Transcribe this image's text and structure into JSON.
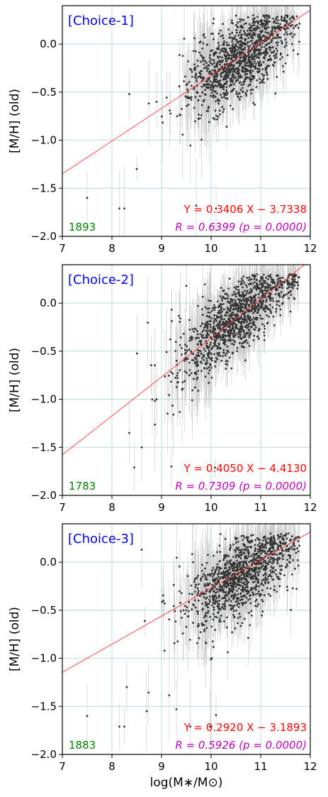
{
  "chart_data": [
    {
      "type": "scatter",
      "label": "[Choice-1]",
      "count": "1893",
      "fit_text": "Y = 0.3406 X − 3.7338",
      "r_text": "R = 0.6399 (p = 0.0000)",
      "fit": {
        "slope": 0.3406,
        "intercept": -3.7338
      },
      "R": 0.6399,
      "p": 0.0,
      "ylabel": "[M/H] (old)",
      "xlabel": "",
      "xlim": [
        7,
        12
      ],
      "ylim": [
        -2.0,
        0.4
      ],
      "xticks": [
        "7",
        "8",
        "9",
        "10",
        "11",
        "12"
      ],
      "yticks": [
        "−2.0",
        "−1.5",
        "−1.0",
        "−0.5",
        "0.0"
      ],
      "grid": true,
      "cloud": {
        "x_mean": 10.6,
        "x_sd": 0.55,
        "x_min": 8.3,
        "x_max": 11.8,
        "y_at_11": 0.0,
        "y_slope": 0.3406,
        "y_sd": 0.2,
        "n_plotted": 1200,
        "floor_y": -1.71
      },
      "points": [
        [
          7.5,
          -1.6
        ],
        [
          8.35,
          -0.52
        ],
        [
          8.25,
          -1.71
        ],
        [
          8.15,
          -1.71
        ],
        [
          8.9,
          -0.6
        ],
        [
          9.7,
          -1.68
        ],
        [
          10.1,
          -1.71
        ],
        [
          8.5,
          -1.3
        ]
      ]
    },
    {
      "type": "scatter",
      "label": "[Choice-2]",
      "count": "1783",
      "fit_text": "Y = 0.4050 X − 4.4130",
      "r_text": "R = 0.7309 (p = 0.0000)",
      "fit": {
        "slope": 0.405,
        "intercept": -4.413
      },
      "R": 0.7309,
      "p": 0.0,
      "ylabel": "[M/H] (old)",
      "xlabel": "",
      "xlim": [
        7,
        12
      ],
      "ylim": [
        -2.0,
        0.4
      ],
      "xticks": [
        "7",
        "8",
        "9",
        "10",
        "11",
        "12"
      ],
      "yticks": [
        "−2.0",
        "−1.5",
        "−1.0",
        "−0.5",
        "0.0"
      ],
      "grid": true,
      "cloud": {
        "x_mean": 10.5,
        "x_sd": 0.6,
        "x_min": 8.3,
        "x_max": 11.8,
        "y_at_11": 0.04,
        "y_slope": 0.405,
        "y_sd": 0.18,
        "n_plotted": 1200,
        "floor_y": -1.71
      },
      "points": [
        [
          8.35,
          -1.35
        ],
        [
          8.45,
          -1.71
        ],
        [
          9.5,
          0.18
        ],
        [
          8.6,
          -1.5
        ],
        [
          9.2,
          -1.7
        ],
        [
          8.9,
          -1.0
        ]
      ]
    },
    {
      "type": "scatter",
      "label": "[Choice-3]",
      "count": "1883",
      "fit_text": "Y = 0.2920 X − 3.1893",
      "r_text": "R = 0.5926 (p = 0.0000)",
      "fit": {
        "slope": 0.292,
        "intercept": -3.1893
      },
      "R": 0.5926,
      "p": 0.0,
      "ylabel": "[M/H] (old)",
      "xlabel": "log(M∗/M⊙)",
      "xlim": [
        7,
        12
      ],
      "ylim": [
        -2.0,
        0.4
      ],
      "xticks": [
        "7",
        "8",
        "9",
        "10",
        "11",
        "12"
      ],
      "yticks": [
        "−2.0",
        "−1.5",
        "−1.0",
        "−0.5",
        "0.0"
      ],
      "grid": true,
      "cloud": {
        "x_mean": 10.6,
        "x_sd": 0.55,
        "x_min": 8.3,
        "x_max": 11.8,
        "y_at_11": -0.02,
        "y_slope": 0.292,
        "y_sd": 0.2,
        "n_plotted": 1200,
        "floor_y": -1.71
      },
      "points": [
        [
          7.5,
          -1.6
        ],
        [
          8.6,
          0.13
        ],
        [
          8.3,
          -1.3
        ],
        [
          8.25,
          -1.71
        ],
        [
          8.15,
          -1.71
        ],
        [
          9.3,
          -1.53
        ],
        [
          10.1,
          -1.59
        ],
        [
          8.7,
          -1.55
        ]
      ]
    }
  ],
  "colors": {
    "points": "#333333",
    "errorbars": "#c8c8c8",
    "fit_line": "#ff3333",
    "grid": "#b8dcdc",
    "label": "#0000ee",
    "count": "#008000",
    "fit_text": "#ff0000",
    "r_text": "#bb00bb"
  }
}
